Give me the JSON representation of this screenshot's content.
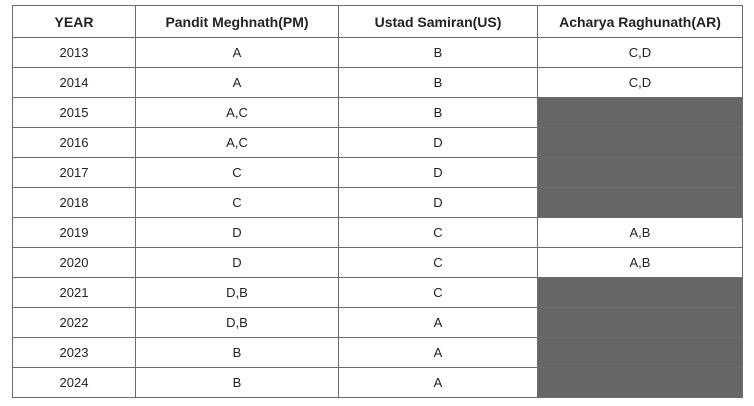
{
  "table": {
    "headers": [
      "YEAR",
      "Pandit Meghnath(PM)",
      "Ustad Samiran(US)",
      "Acharya Raghunath(AR)"
    ],
    "rows": [
      [
        "2013",
        "A",
        "B",
        "C,D"
      ],
      [
        "2014",
        "A",
        "B",
        "C,D"
      ],
      [
        "2015",
        "A,C",
        "B",
        null
      ],
      [
        "2016",
        "A,C",
        "D",
        null
      ],
      [
        "2017",
        "C",
        "D",
        null
      ],
      [
        "2018",
        "C",
        "D",
        null
      ],
      [
        "2019",
        "D",
        "C",
        "A,B"
      ],
      [
        "2020",
        "D",
        "C",
        "A,B"
      ],
      [
        "2021",
        "D,B",
        "C",
        null
      ],
      [
        "2022",
        "D,B",
        "A",
        null
      ],
      [
        "2023",
        "B",
        "A",
        null
      ],
      [
        "2024",
        "B",
        "A",
        null
      ]
    ]
  }
}
